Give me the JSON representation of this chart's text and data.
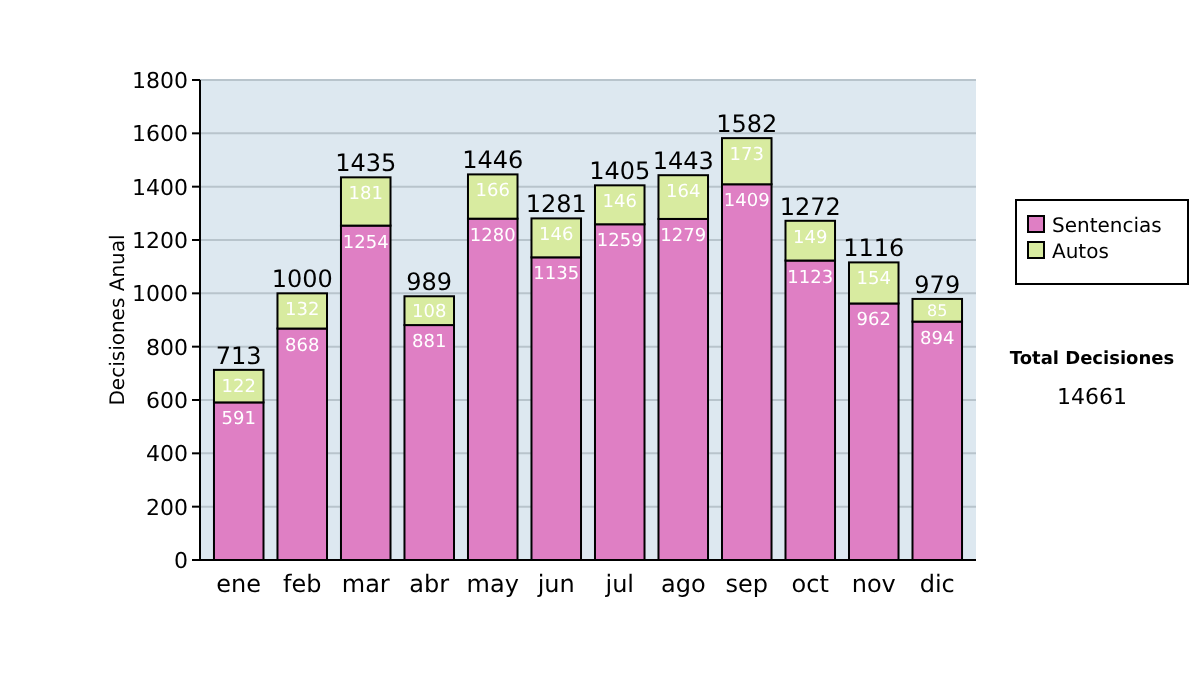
{
  "chart_data": {
    "type": "bar",
    "stacked": true,
    "ylabel": "Decisiones Anual",
    "categories": [
      "ene",
      "feb",
      "mar",
      "abr",
      "may",
      "jun",
      "jul",
      "ago",
      "sep",
      "oct",
      "nov",
      "dic"
    ],
    "series": [
      {
        "name": "Sentencias",
        "color": "#df7fc4",
        "values": [
          591,
          868,
          1254,
          881,
          1280,
          1135,
          1259,
          1279,
          1409,
          1123,
          962,
          894
        ]
      },
      {
        "name": "Autos",
        "color": "#d8eba0",
        "values": [
          122,
          132,
          181,
          108,
          166,
          146,
          146,
          164,
          173,
          149,
          154,
          85
        ]
      }
    ],
    "totals": [
      "713",
      "1000",
      "1435",
      "989",
      "1446",
      "1281",
      "1405",
      "1443",
      "1582",
      "1272",
      "1116",
      "979"
    ],
    "data_labels": true,
    "ylim": [
      0,
      1800
    ],
    "yticks": [
      0,
      200,
      400,
      600,
      800,
      1000,
      1200,
      1400,
      1600,
      1800
    ],
    "grid": "y",
    "legend": "right",
    "annotations": [
      "Total Decisiones",
      "14661"
    ]
  }
}
